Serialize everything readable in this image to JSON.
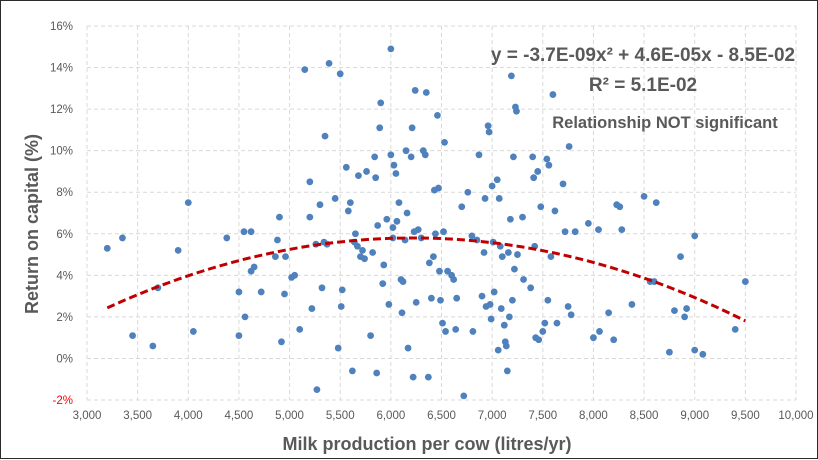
{
  "chart_data": {
    "type": "scatter",
    "xlabel": "Milk production per cow (litres/yr)",
    "ylabel": "Return on capital (%)",
    "xlim": [
      3000,
      10000
    ],
    "ylim": [
      -2,
      16
    ],
    "x_ticks": [
      "3,000",
      "3,500",
      "4,000",
      "4,500",
      "5,000",
      "5,500",
      "6,000",
      "6,500",
      "7,000",
      "7,500",
      "8,000",
      "8,500",
      "9,000",
      "9,500",
      "10,000"
    ],
    "y_ticks": [
      "-2%",
      "0%",
      "2%",
      "4%",
      "6%",
      "8%",
      "10%",
      "12%",
      "14%",
      "16%"
    ],
    "grid": "major, dashed, both axes",
    "colors": {
      "points": "#4f81bd",
      "trendline": "#c00000",
      "negative_tick": "#ff0000",
      "text": "#595959"
    },
    "annotations": {
      "equation": "y = -3.7E-09x² + 4.6E-05x - 8.5E-02",
      "r_squared": "R² = 5.1E-02",
      "note": "Relationship NOT significant"
    },
    "trendline": {
      "type": "polynomial",
      "order": 2,
      "a": -3.7e-09,
      "b": 4.6e-05,
      "c": -0.085,
      "x_range": [
        3200,
        9500
      ],
      "style": "dashed"
    },
    "points": [
      [
        3200,
        5.3
      ],
      [
        3350,
        5.8
      ],
      [
        3450,
        1.1
      ],
      [
        3650,
        0.6
      ],
      [
        3700,
        3.4
      ],
      [
        3900,
        5.2
      ],
      [
        4000,
        7.5
      ],
      [
        4050,
        1.3
      ],
      [
        4380,
        5.8
      ],
      [
        4500,
        3.2
      ],
      [
        4500,
        1.1
      ],
      [
        4550,
        6.1
      ],
      [
        4560,
        2.0
      ],
      [
        4620,
        6.1
      ],
      [
        4620,
        4.2
      ],
      [
        4650,
        4.4
      ],
      [
        4720,
        3.2
      ],
      [
        4860,
        4.9
      ],
      [
        4880,
        5.7
      ],
      [
        4900,
        6.8
      ],
      [
        4920,
        0.8
      ],
      [
        4950,
        3.1
      ],
      [
        4960,
        4.9
      ],
      [
        5020,
        3.9
      ],
      [
        5050,
        4.0
      ],
      [
        5100,
        1.4
      ],
      [
        5150,
        13.9
      ],
      [
        5200,
        8.5
      ],
      [
        5200,
        6.8
      ],
      [
        5220,
        2.4
      ],
      [
        5260,
        5.5
      ],
      [
        5270,
        -1.5
      ],
      [
        5300,
        7.4
      ],
      [
        5320,
        3.4
      ],
      [
        5340,
        5.6
      ],
      [
        5350,
        10.7
      ],
      [
        5370,
        5.5
      ],
      [
        5390,
        14.2
      ],
      [
        5450,
        7.7
      ],
      [
        5480,
        0.5
      ],
      [
        5500,
        13.7
      ],
      [
        5510,
        2.5
      ],
      [
        5520,
        3.3
      ],
      [
        5560,
        9.2
      ],
      [
        5580,
        7.1
      ],
      [
        5600,
        7.5
      ],
      [
        5620,
        -0.6
      ],
      [
        5640,
        5.6
      ],
      [
        5650,
        6.0
      ],
      [
        5670,
        5.4
      ],
      [
        5680,
        8.8
      ],
      [
        5700,
        4.9
      ],
      [
        5720,
        5.2
      ],
      [
        5740,
        4.8
      ],
      [
        5760,
        9.0
      ],
      [
        5800,
        1.1
      ],
      [
        5820,
        5.1
      ],
      [
        5840,
        9.7
      ],
      [
        5850,
        8.7
      ],
      [
        5860,
        -0.7
      ],
      [
        5870,
        6.4
      ],
      [
        5890,
        11.1
      ],
      [
        5900,
        12.3
      ],
      [
        5920,
        3.6
      ],
      [
        5930,
        4.5
      ],
      [
        5960,
        6.7
      ],
      [
        5980,
        2.6
      ],
      [
        6000,
        14.9
      ],
      [
        6000,
        9.8
      ],
      [
        6020,
        6.3
      ],
      [
        6020,
        5.8
      ],
      [
        6030,
        9.3
      ],
      [
        6050,
        8.9
      ],
      [
        6060,
        6.6
      ],
      [
        6080,
        7.5
      ],
      [
        6100,
        3.8
      ],
      [
        6110,
        2.2
      ],
      [
        6120,
        3.7
      ],
      [
        6140,
        5.7
      ],
      [
        6150,
        10.0
      ],
      [
        6160,
        7.0
      ],
      [
        6170,
        0.5
      ],
      [
        6200,
        9.7
      ],
      [
        6210,
        11.1
      ],
      [
        6220,
        -0.9
      ],
      [
        6230,
        6.1
      ],
      [
        6240,
        12.9
      ],
      [
        6250,
        2.7
      ],
      [
        6270,
        6.2
      ],
      [
        6300,
        5.8
      ],
      [
        6320,
        10.0
      ],
      [
        6340,
        9.8
      ],
      [
        6350,
        12.8
      ],
      [
        6370,
        -0.9
      ],
      [
        6380,
        4.6
      ],
      [
        6400,
        2.9
      ],
      [
        6420,
        4.9
      ],
      [
        6430,
        8.1
      ],
      [
        6440,
        6.0
      ],
      [
        6460,
        11.7
      ],
      [
        6470,
        8.2
      ],
      [
        6480,
        4.2
      ],
      [
        6490,
        2.8
      ],
      [
        6510,
        1.7
      ],
      [
        6520,
        6.1
      ],
      [
        6530,
        10.4
      ],
      [
        6540,
        1.3
      ],
      [
        6560,
        4.2
      ],
      [
        6600,
        4.0
      ],
      [
        6620,
        3.8
      ],
      [
        6640,
        1.4
      ],
      [
        6650,
        2.9
      ],
      [
        6700,
        7.3
      ],
      [
        6720,
        -1.8
      ],
      [
        6760,
        8.0
      ],
      [
        6800,
        5.9
      ],
      [
        6810,
        1.3
      ],
      [
        6850,
        5.7
      ],
      [
        6870,
        9.8
      ],
      [
        6900,
        3.0
      ],
      [
        6920,
        5.1
      ],
      [
        6930,
        7.7
      ],
      [
        6940,
        2.5
      ],
      [
        6960,
        11.2
      ],
      [
        6970,
        10.9
      ],
      [
        6980,
        2.6
      ],
      [
        6990,
        1.9
      ],
      [
        7000,
        8.3
      ],
      [
        7010,
        5.6
      ],
      [
        7020,
        3.2
      ],
      [
        7050,
        8.6
      ],
      [
        7060,
        0.4
      ],
      [
        7070,
        7.7
      ],
      [
        7080,
        5.4
      ],
      [
        7090,
        2.4
      ],
      [
        7100,
        4.9
      ],
      [
        7120,
        1.6
      ],
      [
        7130,
        0.8
      ],
      [
        7140,
        0.6
      ],
      [
        7150,
        -0.6
      ],
      [
        7160,
        5.1
      ],
      [
        7170,
        2.0
      ],
      [
        7180,
        6.7
      ],
      [
        7190,
        13.6
      ],
      [
        7200,
        2.8
      ],
      [
        7210,
        9.7
      ],
      [
        7220,
        4.3
      ],
      [
        7230,
        12.1
      ],
      [
        7240,
        11.9
      ],
      [
        7250,
        5.0
      ],
      [
        7300,
        6.8
      ],
      [
        7310,
        3.8
      ],
      [
        7380,
        3.4
      ],
      [
        7400,
        9.7
      ],
      [
        7410,
        8.7
      ],
      [
        7420,
        5.4
      ],
      [
        7430,
        1.0
      ],
      [
        7450,
        9.0
      ],
      [
        7460,
        0.9
      ],
      [
        7480,
        7.3
      ],
      [
        7500,
        1.3
      ],
      [
        7520,
        1.7
      ],
      [
        7540,
        9.6
      ],
      [
        7550,
        2.8
      ],
      [
        7560,
        9.3
      ],
      [
        7580,
        4.9
      ],
      [
        7600,
        12.7
      ],
      [
        7620,
        7.1
      ],
      [
        7640,
        1.7
      ],
      [
        7700,
        8.4
      ],
      [
        7720,
        6.1
      ],
      [
        7750,
        2.5
      ],
      [
        7760,
        10.2
      ],
      [
        7780,
        2.1
      ],
      [
        7820,
        6.1
      ],
      [
        7950,
        6.5
      ],
      [
        8000,
        1.0
      ],
      [
        8050,
        6.2
      ],
      [
        8060,
        1.3
      ],
      [
        8150,
        2.2
      ],
      [
        8200,
        0.9
      ],
      [
        8230,
        7.4
      ],
      [
        8260,
        7.3
      ],
      [
        8280,
        6.2
      ],
      [
        8380,
        2.6
      ],
      [
        8500,
        7.8
      ],
      [
        8560,
        3.7
      ],
      [
        8600,
        3.7
      ],
      [
        8620,
        7.5
      ],
      [
        8750,
        0.3
      ],
      [
        8800,
        2.3
      ],
      [
        8860,
        4.9
      ],
      [
        8900,
        2.0
      ],
      [
        8920,
        2.4
      ],
      [
        9000,
        0.4
      ],
      [
        9000,
        5.9
      ],
      [
        9080,
        0.2
      ],
      [
        9400,
        1.4
      ],
      [
        9500,
        3.7
      ]
    ]
  }
}
